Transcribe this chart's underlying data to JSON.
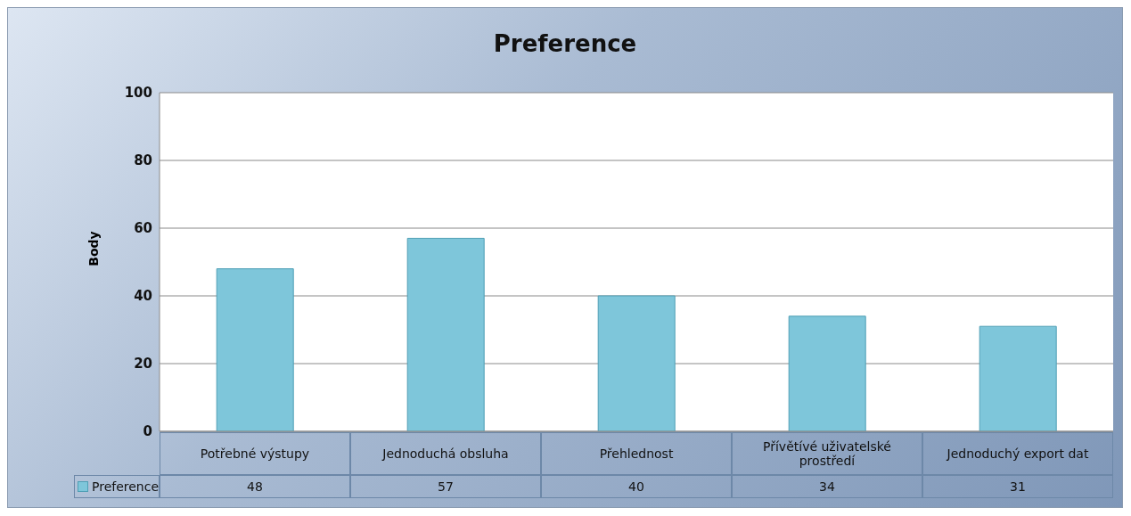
{
  "chart_data": {
    "type": "bar",
    "title": "Preference",
    "ylabel": "Body",
    "categories": [
      "Potřebné výstupy",
      "Jednoduchá obsluha",
      "Přehlednost",
      "Přívětívé uživatelské prostředí",
      "Jednoduchý export dat"
    ],
    "series": [
      {
        "name": "Preference",
        "color": "#7ec6da",
        "values": [
          48,
          57,
          40,
          34,
          31
        ]
      }
    ],
    "ylim": [
      0,
      100
    ],
    "yticks": [
      0,
      20,
      40,
      60,
      80,
      100
    ],
    "grid": "y",
    "legend": "bottom left",
    "data_labels": true
  }
}
